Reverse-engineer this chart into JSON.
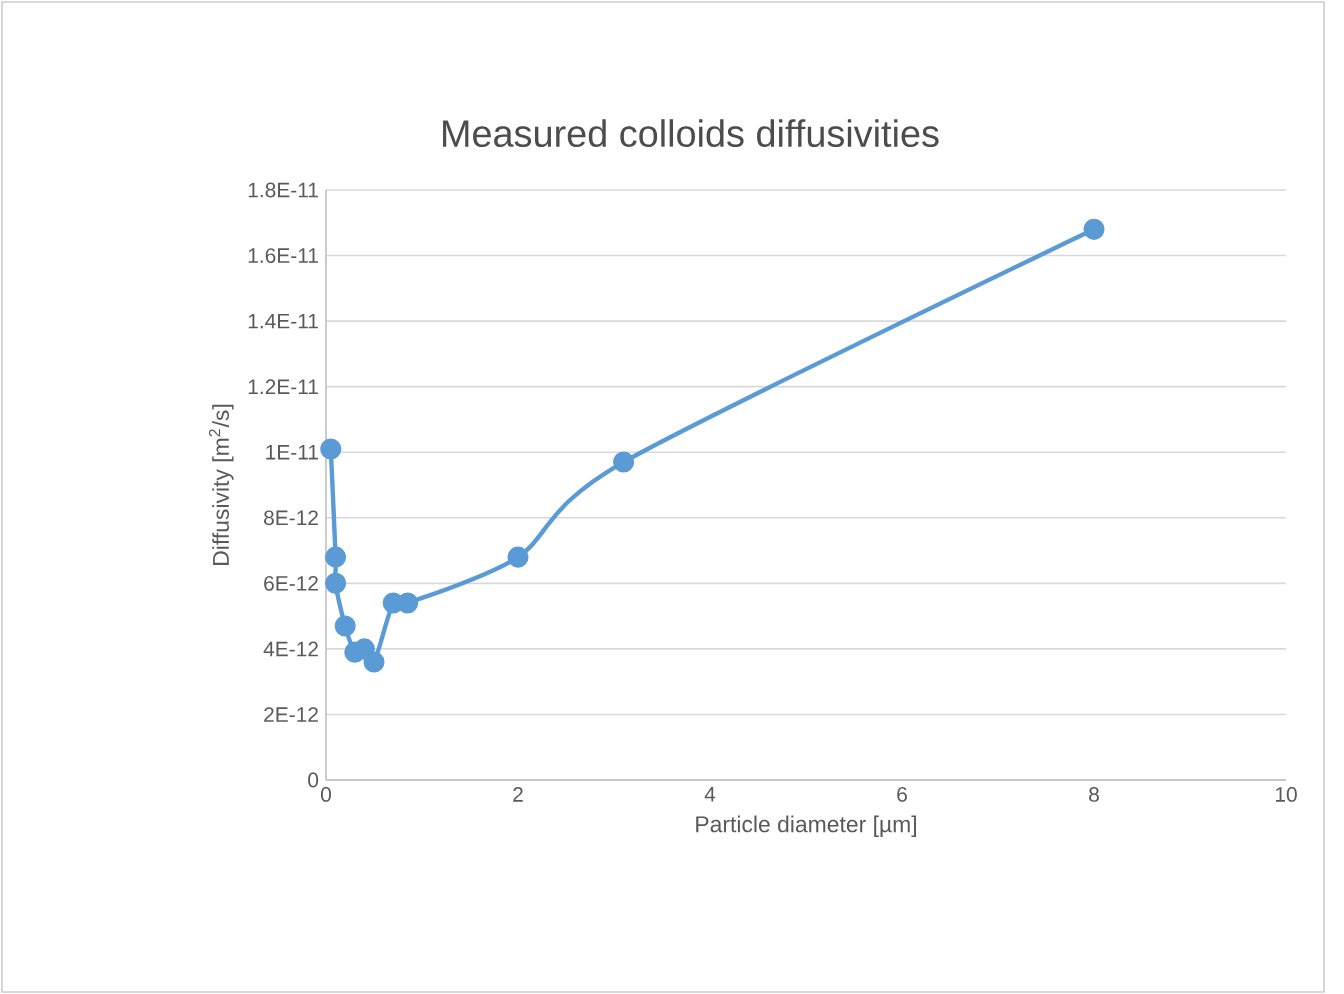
{
  "chart_data": {
    "type": "line",
    "title": "Measured colloids diffusivities",
    "xlabel": "Particle diameter [µm]",
    "ylabel": "Diffusivity [m$^{2}$/s]",
    "series": [
      {
        "color": "#5b9bd5",
        "x": [
          0.05,
          0.1,
          0.1,
          0.2,
          0.3,
          0.4,
          0.5,
          0.7,
          0.85,
          2,
          3.1,
          8
        ],
        "values": [
          1.01e-11,
          6.8e-12,
          6e-12,
          4.7e-12,
          3.9e-12,
          4e-12,
          3.6e-12,
          5.4e-12,
          5.4e-12,
          6.8e-12,
          9.7e-12,
          1.68e-11
        ]
      }
    ],
    "xlim": [
      0,
      10
    ],
    "xticks": [
      0,
      2,
      4,
      6,
      8,
      10
    ],
    "ylim": [
      0,
      1.8e-11
    ],
    "yticks": [
      0,
      {
        "value": 2e-12,
        "label": "2E-12"
      },
      {
        "value": 4e-12,
        "label": "4E-12"
      },
      {
        "value": 6e-12,
        "label": "6E-12"
      },
      {
        "value": 8e-12,
        "label": "8E-12"
      },
      {
        "value": 1e-11,
        "label": "1E-11"
      },
      {
        "value": 1.2e-11,
        "label": "1.2E-11"
      },
      {
        "value": 1.4e-11,
        "label": "1.4E-11"
      },
      {
        "value": 1.6e-11,
        "label": "1.6E-11"
      },
      {
        "value": 1.8e-11,
        "label": "1.8E-11"
      }
    ],
    "grid": "y",
    "marker": "circle",
    "line_style": "solid"
  }
}
